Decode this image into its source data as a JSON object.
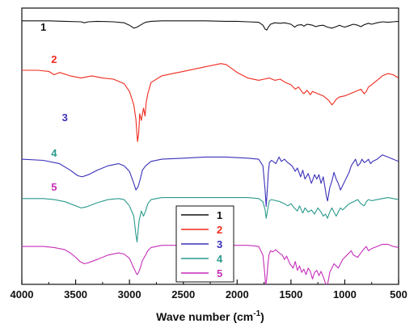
{
  "chart_data": {
    "type": "line",
    "title": "",
    "xlabel": "Wave number (cm",
    "xlabel_sup": "-1",
    "xlabel_close": ")",
    "ylabel": "",
    "xlim": [
      4000,
      500
    ],
    "x_reversed": true,
    "y_axis_ticks": false,
    "grid": false,
    "legend_placement": "bottom-center",
    "x_ticks": [
      {
        "value": 4000,
        "label": "4000"
      },
      {
        "value": 3500,
        "label": "3500"
      },
      {
        "value": 3000,
        "label": "3000"
      },
      {
        "value": 2500,
        "label": "2500"
      },
      {
        "value": 2000,
        "label": "2000"
      },
      {
        "value": 1500,
        "label": "1500"
      },
      {
        "value": 1000,
        "label": "1000"
      },
      {
        "value": 500,
        "label": "500"
      }
    ],
    "series": [
      {
        "name": "1",
        "color": "#111111",
        "label_at": 3800,
        "x": [
          4000,
          3750,
          3600,
          3450,
          3420,
          3380,
          3300,
          3150,
          3050,
          3000,
          2960,
          2930,
          2900,
          2870,
          2850,
          2800,
          2700,
          2500,
          2300,
          2100,
          2000,
          1900,
          1800,
          1760,
          1740,
          1725,
          1710,
          1690,
          1650,
          1600,
          1560,
          1500,
          1465,
          1440,
          1400,
          1380,
          1350,
          1300,
          1270,
          1240,
          1200,
          1160,
          1120,
          1080,
          1050,
          1030,
          1000,
          960,
          920,
          880,
          850,
          820,
          780,
          750,
          700,
          650,
          600,
          550,
          500
        ],
        "y": [
          97,
          97,
          96,
          95,
          93,
          95,
          96,
          95,
          93,
          88,
          82,
          84,
          88,
          92,
          94,
          96,
          97,
          97,
          97,
          96,
          96,
          95,
          94,
          88,
          80,
          78,
          84,
          90,
          93,
          92,
          93,
          90,
          84,
          88,
          89,
          86,
          90,
          88,
          85,
          87,
          88,
          84,
          82,
          85,
          88,
          86,
          84,
          87,
          90,
          88,
          85,
          89,
          92,
          90,
          93,
          95,
          94,
          95,
          96
        ]
      },
      {
        "name": "2",
        "color": "#ee2a1e",
        "label_at": 3700,
        "x": [
          4000,
          3850,
          3750,
          3700,
          3650,
          3550,
          3450,
          3350,
          3250,
          3150,
          3050,
          3000,
          2960,
          2940,
          2925,
          2915,
          2905,
          2890,
          2870,
          2855,
          2845,
          2830,
          2800,
          2700,
          2600,
          2500,
          2400,
          2300,
          2200,
          2150,
          2100,
          2000,
          1900,
          1800,
          1750,
          1700,
          1650,
          1600,
          1550,
          1500,
          1460,
          1430,
          1400,
          1380,
          1350,
          1320,
          1300,
          1250,
          1200,
          1150,
          1120,
          1100,
          1080,
          1050,
          1000,
          950,
          900,
          850,
          820,
          800,
          780,
          750,
          700,
          650,
          600,
          550,
          500
        ],
        "y": [
          79,
          79,
          78,
          75,
          77,
          74,
          72,
          74,
          72,
          71,
          67,
          60,
          48,
          35,
          15,
          22,
          40,
          34,
          45,
          38,
          50,
          58,
          68,
          74,
          76,
          78,
          80,
          82,
          84,
          85,
          84,
          77,
          72,
          70,
          71,
          72,
          70,
          71,
          68,
          66,
          62,
          64,
          60,
          58,
          61,
          57,
          60,
          58,
          56,
          52,
          48,
          50,
          53,
          55,
          56,
          58,
          60,
          62,
          58,
          60,
          64,
          66,
          70,
          74,
          76,
          75,
          72
        ]
      },
      {
        "name": "3",
        "color": "#3a30b8",
        "label_at": 3600,
        "x": [
          4000,
          3800,
          3650,
          3550,
          3480,
          3440,
          3380,
          3300,
          3200,
          3100,
          3050,
          3000,
          2960,
          2940,
          2920,
          2900,
          2880,
          2850,
          2800,
          2700,
          2500,
          2300,
          2100,
          1900,
          1800,
          1760,
          1740,
          1730,
          1720,
          1710,
          1700,
          1680,
          1640,
          1610,
          1590,
          1560,
          1530,
          1490,
          1460,
          1440,
          1410,
          1390,
          1370,
          1340,
          1310,
          1280,
          1260,
          1240,
          1220,
          1200,
          1180,
          1170,
          1160,
          1150,
          1140,
          1120,
          1100,
          1080,
          1060,
          1040,
          1020,
          1000,
          980,
          960,
          940,
          900,
          880,
          860,
          840,
          820,
          800,
          780,
          760,
          740,
          700,
          650,
          600,
          550,
          500
        ],
        "y": [
          58,
          57,
          54,
          48,
          43,
          42,
          44,
          48,
          52,
          54,
          52,
          47,
          36,
          30,
          33,
          40,
          48,
          52,
          56,
          58,
          59,
          60,
          60,
          59,
          58,
          52,
          30,
          15,
          30,
          46,
          55,
          57,
          54,
          60,
          56,
          58,
          55,
          52,
          47,
          50,
          42,
          48,
          40,
          45,
          36,
          44,
          40,
          44,
          36,
          42,
          30,
          24,
          20,
          26,
          32,
          38,
          46,
          40,
          36,
          30,
          34,
          38,
          42,
          46,
          52,
          58,
          52,
          54,
          58,
          55,
          56,
          58,
          54,
          56,
          58,
          62,
          60,
          58,
          56
        ]
      },
      {
        "name": "4",
        "color": "#2a9a8c",
        "label_at": 3700,
        "x": [
          4000,
          3800,
          3700,
          3600,
          3500,
          3450,
          3400,
          3300,
          3200,
          3100,
          3050,
          3000,
          2960,
          2940,
          2930,
          2920,
          2910,
          2890,
          2870,
          2850,
          2830,
          2800,
          2700,
          2500,
          2300,
          2100,
          1900,
          1800,
          1760,
          1740,
          1730,
          1720,
          1710,
          1700,
          1680,
          1640,
          1600,
          1560,
          1530,
          1500,
          1470,
          1440,
          1420,
          1390,
          1370,
          1340,
          1310,
          1280,
          1250,
          1220,
          1200,
          1180,
          1160,
          1140,
          1120,
          1100,
          1080,
          1060,
          1040,
          1020,
          1000,
          980,
          960,
          920,
          880,
          850,
          820,
          800,
          780,
          750,
          700,
          650,
          600,
          550,
          500
        ],
        "y": [
          47,
          47,
          46,
          44,
          40,
          38,
          39,
          43,
          46,
          47,
          46,
          40,
          30,
          12,
          5,
          16,
          26,
          35,
          30,
          35,
          42,
          46,
          48,
          48,
          48,
          48,
          48,
          47,
          44,
          36,
          28,
          34,
          40,
          45,
          46,
          45,
          44,
          42,
          40,
          42,
          38,
          35,
          40,
          33,
          38,
          34,
          36,
          32,
          38,
          34,
          30,
          32,
          28,
          34,
          38,
          34,
          30,
          34,
          38,
          36,
          38,
          40,
          42,
          44,
          46,
          42,
          40,
          44,
          46,
          45,
          46,
          47,
          48,
          47,
          46
        ]
      },
      {
        "name": "5",
        "color": "#c62fb9",
        "label_at": 3700,
        "x": [
          4000,
          3800,
          3700,
          3600,
          3550,
          3500,
          3460,
          3420,
          3380,
          3300,
          3200,
          3100,
          3050,
          3000,
          2960,
          2940,
          2930,
          2920,
          2900,
          2880,
          2850,
          2830,
          2800,
          2700,
          2500,
          2300,
          2100,
          1900,
          1800,
          1760,
          1745,
          1735,
          1725,
          1715,
          1705,
          1690,
          1670,
          1640,
          1610,
          1580,
          1560,
          1540,
          1510,
          1480,
          1460,
          1440,
          1420,
          1400,
          1380,
          1360,
          1340,
          1320,
          1300,
          1280,
          1260,
          1240,
          1220,
          1200,
          1180,
          1170,
          1160,
          1150,
          1140,
          1120,
          1100,
          1080,
          1060,
          1040,
          1020,
          1000,
          980,
          960,
          940,
          920,
          880,
          850,
          820,
          800,
          780,
          750,
          700,
          650,
          600,
          550,
          500
        ],
        "y": [
          38,
          38,
          37,
          35,
          32,
          28,
          24,
          22,
          23,
          26,
          30,
          32,
          31,
          27,
          18,
          14,
          12,
          13,
          18,
          25,
          30,
          34,
          37,
          39,
          39,
          39,
          39,
          39,
          38,
          30,
          15,
          2,
          8,
          20,
          30,
          34,
          33,
          35,
          32,
          30,
          26,
          29,
          22,
          18,
          24,
          16,
          20,
          14,
          17,
          12,
          18,
          15,
          8,
          14,
          16,
          11,
          15,
          10,
          4,
          0,
          3,
          8,
          14,
          18,
          22,
          20,
          18,
          22,
          26,
          28,
          30,
          32,
          34,
          30,
          28,
          32,
          36,
          38,
          34,
          36,
          38,
          40,
          40,
          38,
          37
        ]
      }
    ]
  }
}
